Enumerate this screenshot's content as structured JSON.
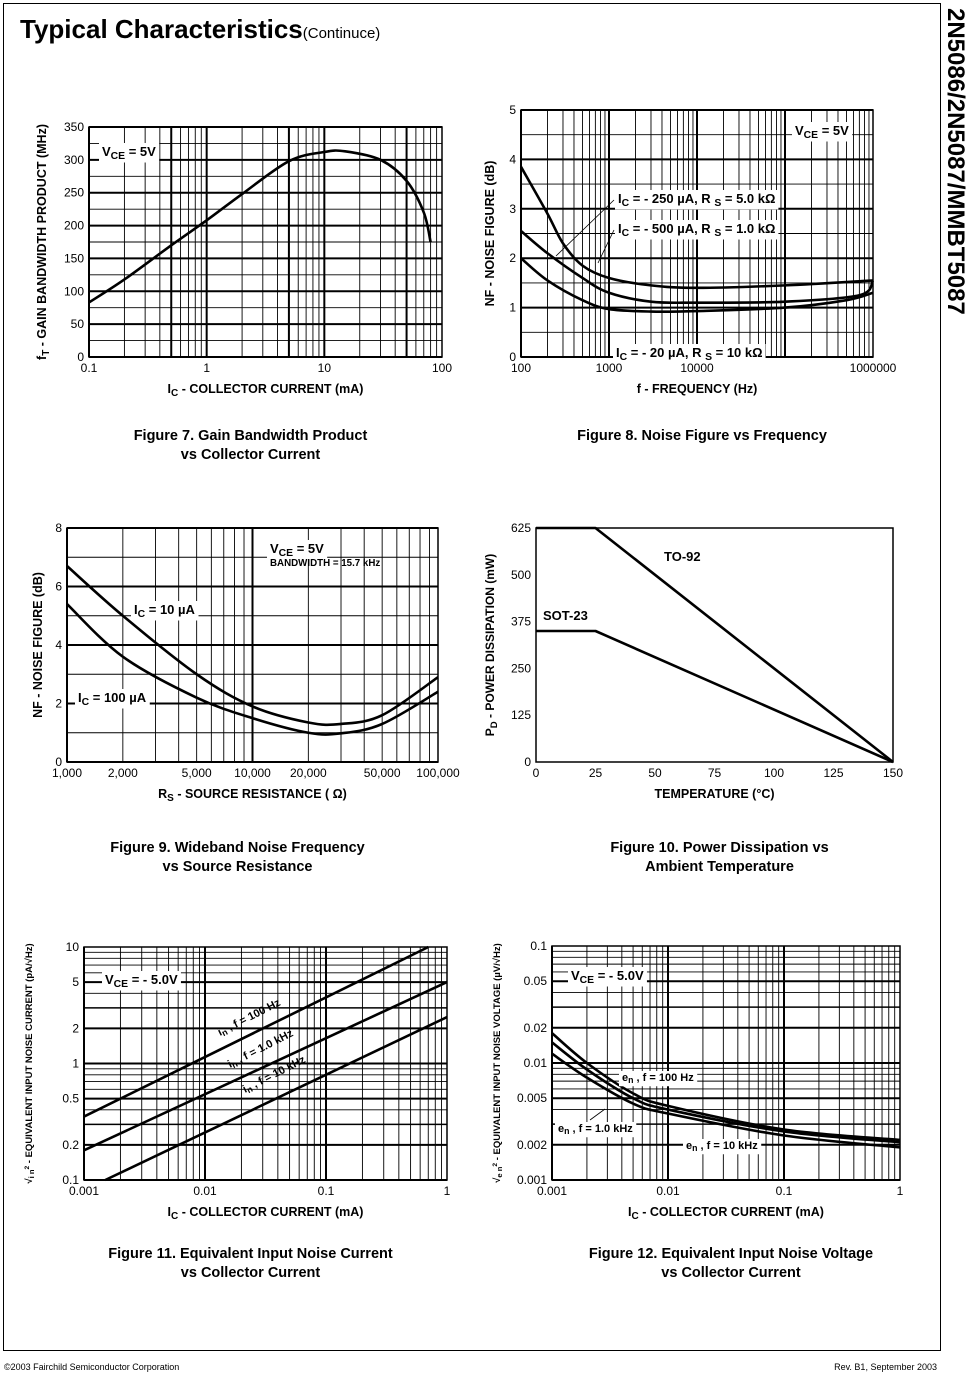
{
  "page": {
    "heading": "Typical Characteristics",
    "heading_suffix": "(Continuce)",
    "side_title": "2N5086/2N5087/MMBT5087",
    "footer_left": "©2003 Fairchild Semiconductor Corporation",
    "footer_right": "Rev. B1, September 2003"
  },
  "chart_data": [
    {
      "type": "line",
      "caption": [
        "Figure 7. Gain Bandwidth Product",
        "vs Collector Current"
      ],
      "xscale": "log",
      "yscale": "linear",
      "xlim": [
        0.1,
        100
      ],
      "ylim": [
        0,
        350
      ],
      "xticks": [
        0.1,
        1,
        10,
        100
      ],
      "xtick_labels": [
        "0.1",
        "1",
        "10",
        "100"
      ],
      "yticks": [
        0,
        50,
        100,
        150,
        200,
        250,
        300,
        350
      ],
      "ytick_labels": [
        "0",
        "50",
        "100",
        "150",
        "200",
        "250",
        "300",
        "350"
      ],
      "xlabel": [
        [
          "I",
          ""
        ],
        [
          "C",
          "sub"
        ],
        [
          "  - COLLECTOR CURRENT (mA)",
          ""
        ]
      ],
      "ylabel": [
        [
          "f",
          ""
        ],
        [
          "T",
          "sub"
        ],
        [
          "  - GAIN BANDWIDTH PRODUCT (MHz)",
          ""
        ]
      ],
      "grid": true,
      "annotations": [
        [
          [
            "V",
            ""
          ],
          [
            "CE",
            "sub"
          ],
          [
            " = 5V",
            ""
          ]
        ]
      ],
      "series": [
        {
          "x": [
            0.1,
            0.2,
            0.5,
            1,
            2,
            5,
            10,
            15,
            30,
            50,
            70,
            80
          ],
          "y": [
            83,
            118,
            170,
            208,
            248,
            298,
            312,
            313,
            300,
            268,
            220,
            175
          ]
        }
      ]
    },
    {
      "type": "line",
      "caption": [
        "Figure 8. Noise Figure vs Frequency"
      ],
      "xscale": "log",
      "yscale": "linear",
      "xlim": [
        100,
        1000000
      ],
      "ylim": [
        0,
        5
      ],
      "xticks": [
        100,
        1000,
        10000,
        1000000
      ],
      "xtick_labels": [
        "100",
        "1000",
        "10000",
        "1000000"
      ],
      "yticks": [
        0,
        1,
        2,
        3,
        4,
        5
      ],
      "ytick_labels": [
        "0",
        "1",
        "2",
        "3",
        "4",
        "5"
      ],
      "xlabel": [
        [
          "f - FREQUENCY (Hz)",
          ""
        ]
      ],
      "ylabel": [
        [
          "NF - NOISE FIGURE (dB)",
          ""
        ]
      ],
      "grid": true,
      "annotations": [
        [
          [
            "V",
            ""
          ],
          [
            "CE",
            "sub"
          ],
          [
            " = 5V",
            ""
          ]
        ]
      ],
      "series": [
        {
          "label": [
            [
              "I",
              ""
            ],
            [
              "C",
              "sub"
            ],
            [
              " = - 250 µA, R ",
              ""
            ],
            [
              "S",
              "sub"
            ],
            [
              " = 5.0 kΩ",
              ""
            ]
          ],
          "x": [
            100,
            200,
            300,
            500,
            1000,
            3000,
            10000,
            100000,
            1000000
          ],
          "y": [
            3.85,
            2.9,
            2.3,
            1.85,
            1.6,
            1.45,
            1.4,
            1.45,
            1.55
          ]
        },
        {
          "label": [
            [
              "I",
              ""
            ],
            [
              "C",
              "sub"
            ],
            [
              " = - 500 µA, R ",
              ""
            ],
            [
              "S",
              "sub"
            ],
            [
              " = 1.0 kΩ",
              ""
            ]
          ],
          "x": [
            100,
            200,
            500,
            1000,
            3000,
            10000,
            100000,
            700000,
            1000000
          ],
          "y": [
            2.55,
            2.1,
            1.6,
            1.3,
            1.12,
            1.1,
            1.12,
            1.25,
            1.55
          ]
        },
        {
          "label": [
            [
              "I",
              ""
            ],
            [
              "C",
              "sub"
            ],
            [
              " = - 20 µA, R ",
              ""
            ],
            [
              "S",
              "sub"
            ],
            [
              " = 10 kΩ",
              ""
            ]
          ],
          "x": [
            100,
            200,
            500,
            1000,
            3000,
            10000,
            100000,
            500000,
            1000000
          ],
          "y": [
            2.0,
            1.55,
            1.15,
            0.97,
            0.92,
            0.93,
            1.0,
            1.15,
            1.3
          ]
        }
      ]
    },
    {
      "type": "line",
      "caption": [
        "Figure 9. Wideband Noise Frequency",
        "vs Source Resistance"
      ],
      "xscale": "log",
      "yscale": "linear",
      "xlim": [
        1000,
        100000
      ],
      "ylim": [
        0,
        8
      ],
      "xticks": [
        1000,
        2000,
        5000,
        10000,
        20000,
        50000,
        100000
      ],
      "xtick_labels": [
        "1,000",
        "2,000",
        "5,000",
        "10,000",
        "20,000",
        "50,000",
        "100,000"
      ],
      "yticks": [
        0,
        2,
        4,
        6,
        8
      ],
      "ytick_labels": [
        "0",
        "2",
        "4",
        "6",
        "8"
      ],
      "xlabel": [
        [
          "R",
          ""
        ],
        [
          "S",
          "sub"
        ],
        [
          "  - SOURCE RESISTANCE ( Ω)",
          ""
        ]
      ],
      "ylabel": [
        [
          "NF - NOISE FIGURE (dB)",
          ""
        ]
      ],
      "grid": true,
      "annotations": [
        [
          [
            "V",
            ""
          ],
          [
            "CE",
            "sub"
          ],
          [
            "  = 5V",
            ""
          ]
        ],
        [
          [
            "BANDWIDTH = 15.7 kHz",
            "small"
          ]
        ]
      ],
      "series": [
        {
          "label": [
            [
              "I",
              ""
            ],
            [
              "C",
              "sub"
            ],
            [
              " = 10 µA",
              ""
            ]
          ],
          "x": [
            1000,
            2000,
            5000,
            10000,
            20000,
            30000,
            50000,
            100000
          ],
          "y": [
            6.7,
            5.0,
            3.0,
            1.9,
            1.35,
            1.3,
            1.6,
            2.9
          ]
        },
        {
          "label": [
            [
              "I",
              ""
            ],
            [
              "C",
              "sub"
            ],
            [
              " = 100 µA",
              ""
            ]
          ],
          "x": [
            1000,
            2000,
            5000,
            10000,
            20000,
            30000,
            50000,
            100000
          ],
          "y": [
            5.4,
            3.6,
            2.2,
            1.5,
            1.0,
            0.98,
            1.3,
            2.4
          ]
        }
      ]
    },
    {
      "type": "line",
      "caption": [
        "Figure 10. Power Dissipation vs",
        "Ambient Temperature"
      ],
      "xscale": "linear",
      "yscale": "linear",
      "xlim": [
        0,
        150
      ],
      "ylim": [
        0,
        625
      ],
      "xticks": [
        0,
        25,
        50,
        75,
        100,
        125,
        150
      ],
      "xtick_labels": [
        "0",
        "25",
        "50",
        "75",
        "100",
        "125",
        "150"
      ],
      "yticks": [
        0,
        125,
        250,
        375,
        500,
        625
      ],
      "ytick_labels": [
        "0",
        "125",
        "250",
        "375",
        "500",
        "625"
      ],
      "xlabel": [
        [
          "TEMPERATURE  (°C)",
          ""
        ]
      ],
      "ylabel": [
        [
          "P",
          ""
        ],
        [
          "D",
          "sub"
        ],
        [
          " - POWER DISSIPATION (mW)",
          ""
        ]
      ],
      "grid": false,
      "annotations": [],
      "series": [
        {
          "label": [
            [
              "TO-92",
              ""
            ]
          ],
          "x": [
            0,
            25,
            150
          ],
          "y": [
            625,
            625,
            0
          ]
        },
        {
          "label": [
            [
              "SOT-23",
              ""
            ]
          ],
          "x": [
            0,
            25,
            150
          ],
          "y": [
            350,
            350,
            0
          ]
        }
      ]
    },
    {
      "type": "line",
      "caption": [
        "Figure 11. Equivalent Input Noise Current",
        "vs Collector Current"
      ],
      "xscale": "log",
      "yscale": "log",
      "xlim": [
        0.001,
        1
      ],
      "ylim": [
        0.1,
        10
      ],
      "xticks": [
        0.001,
        0.01,
        0.1,
        1
      ],
      "xtick_labels": [
        "0.001",
        "0.01",
        "0.1",
        "1"
      ],
      "yticks": [
        0.1,
        0.2,
        0.5,
        1,
        2,
        5,
        10
      ],
      "ytick_labels": [
        "0.1",
        "0.2",
        "0.5",
        "1",
        "2",
        "5",
        "10"
      ],
      "xlabel": [
        [
          "I",
          ""
        ],
        [
          "C",
          "sub"
        ],
        [
          "  - COLLECTOR CURRENT (mA)",
          ""
        ]
      ],
      "ylabel": [
        [
          "√",
          ""
        ],
        [
          "i n",
          "sub"
        ],
        [
          "2",
          "sup"
        ],
        [
          " - EQUIVALENT INPUT NOISE CURRENT (pA/√Hz)",
          ""
        ]
      ],
      "grid": true,
      "annotations": [
        [
          [
            "V",
            ""
          ],
          [
            "CE",
            "sub"
          ],
          [
            " = - 5.0V",
            ""
          ]
        ]
      ],
      "series": [
        {
          "label": [
            [
              "i",
              ""
            ],
            [
              "n",
              "sub"
            ],
            [
              " , f = 100 Hz",
              ""
            ]
          ],
          "x": [
            0.001,
            0.7
          ],
          "y": [
            0.35,
            10
          ]
        },
        {
          "label": [
            [
              "i",
              ""
            ],
            [
              "n",
              "sub"
            ],
            [
              " , f = 1.0 kHz",
              ""
            ]
          ],
          "x": [
            0.001,
            1
          ],
          "y": [
            0.18,
            5
          ]
        },
        {
          "label": [
            [
              "i",
              ""
            ],
            [
              "n",
              "sub"
            ],
            [
              " , f = 10 kHz",
              ""
            ]
          ],
          "x": [
            0.0015,
            1
          ],
          "y": [
            0.1,
            2.5
          ]
        }
      ]
    },
    {
      "type": "line",
      "caption": [
        "Figure 12. Equivalent Input Noise Voltage",
        "vs Collector Current"
      ],
      "xscale": "log",
      "yscale": "log",
      "xlim": [
        0.001,
        1
      ],
      "ylim": [
        0.001,
        0.1
      ],
      "xticks": [
        0.001,
        0.01,
        0.1,
        1
      ],
      "xtick_labels": [
        "0.001",
        "0.01",
        "0.1",
        "1"
      ],
      "yticks": [
        0.001,
        0.002,
        0.005,
        0.01,
        0.02,
        0.05,
        0.1
      ],
      "ytick_labels": [
        "0.001",
        "0.002",
        "0.005",
        "0.01",
        "0.02",
        "0.05",
        "0.1"
      ],
      "xlabel": [
        [
          "I",
          ""
        ],
        [
          "C",
          "sub"
        ],
        [
          "  - COLLECTOR CURRENT (mA)",
          ""
        ]
      ],
      "ylabel": [
        [
          "√",
          ""
        ],
        [
          "e n",
          "sub"
        ],
        [
          "2",
          "sup"
        ],
        [
          " - EQUIVALENT INPUT NOISE  VOLTAGE (µV/√Hz)",
          ""
        ]
      ],
      "grid": true,
      "annotations": [
        [
          [
            "V",
            ""
          ],
          [
            "CE",
            "sub"
          ],
          [
            " = - 5.0V",
            ""
          ]
        ]
      ],
      "series": [
        {
          "label": [
            [
              "e",
              ""
            ],
            [
              "n",
              "sub"
            ],
            [
              " , f = 100 Hz",
              ""
            ]
          ],
          "x": [
            0.001,
            0.002,
            0.005,
            0.01,
            0.1,
            1
          ],
          "y": [
            0.018,
            0.01,
            0.0055,
            0.0043,
            0.0027,
            0.0022
          ]
        },
        {
          "label": [
            [
              "e",
              ""
            ],
            [
              "n",
              "sub"
            ],
            [
              " , f = 1.0 kHz",
              ""
            ]
          ],
          "x": [
            0.001,
            0.002,
            0.005,
            0.01,
            0.1,
            1
          ],
          "y": [
            0.015,
            0.0088,
            0.005,
            0.004,
            0.0026,
            0.0021
          ]
        },
        {
          "label": [
            [
              "e",
              ""
            ],
            [
              "n",
              "sub"
            ],
            [
              " , f = 10 kHz",
              ""
            ]
          ],
          "x": [
            0.001,
            0.002,
            0.005,
            0.01,
            0.1,
            1
          ],
          "y": [
            0.012,
            0.0075,
            0.0045,
            0.0037,
            0.0024,
            0.0019
          ]
        }
      ]
    }
  ]
}
